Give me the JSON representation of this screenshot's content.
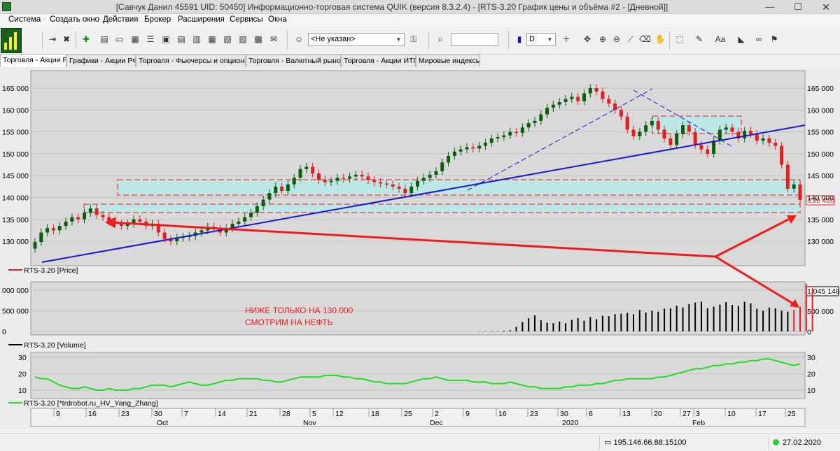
{
  "window": {
    "title": "[Савчук Данил 45591 UID: 50450] Информационно-торговая система QUIK (версия 8.3.2.4) - [RTS-3.20 График цены и объёма #2 - [Дневной]]",
    "min_glyph": "—",
    "max_glyph": "☐",
    "close_glyph": "✕"
  },
  "menu": [
    "Система",
    "Создать окно",
    "Действия",
    "Брокер",
    "Расширения",
    "Сервисы",
    "Окна"
  ],
  "toolbar": {
    "account_value": "<Не указан>",
    "interval_value": "D",
    "search_value": ""
  },
  "tabs": [
    "Торговля - Акции РФ",
    "Графики - Акции РФ",
    "Торговля - Фьючерсы и опционы",
    "Торговля - Валютный рынок",
    "Торговля - Акции ИТП",
    "Мировые индексы"
  ],
  "chart": {
    "price_legend": "RTS-3.20 [Price]",
    "volume_legend": "RTS-3.20 [Volume]",
    "hv_legend": "RTS-3.20 [*trdrobot.ru_HV_Yang_Zhang]",
    "last_price_label": "139 450",
    "last_volume_label": "1 045 148",
    "annotation_line1": "НИЖЕ ТОЛЬКО НА 130.000",
    "annotation_line2": "СМОТРИМ НА НЕФТЬ",
    "price_ticks": [
      "165 000",
      "160 000",
      "155 000",
      "150 000",
      "145 000",
      "140 000",
      "135 000",
      "130 000"
    ],
    "price_ticks_right": [
      "165 000",
      "160 000",
      "155 000",
      "150 000",
      "145 000",
      "140 000",
      "135 000",
      "130 000"
    ],
    "volume_ticks": [
      "000 000",
      "500 000",
      "0"
    ],
    "volume_ticks_right": [
      "500 000",
      "0"
    ],
    "hv_ticks": [
      "30",
      "20",
      "10"
    ],
    "day_ticks": [
      "9",
      "16",
      "23",
      "30",
      "7",
      "14",
      "21",
      "28",
      "5",
      "12",
      "18",
      "25",
      "2",
      "9",
      "16",
      "23",
      "30",
      "6",
      "13",
      "20",
      "27",
      "3",
      "10",
      "17",
      "25"
    ],
    "month_ticks": [
      "Oct",
      "Nov",
      "Dec",
      "2020",
      "Feb"
    ],
    "colors": {
      "up": "#0b5e0b",
      "down": "#e02020",
      "trend": "#1a1acd",
      "zone": "#bde6e6",
      "hv": "#22dd22",
      "arrow": "#ee1c1c"
    }
  },
  "chart_data": {
    "type": "candlestick",
    "series_name": "RTS-3.20",
    "y_range": [
      126000,
      167000
    ],
    "close_prices": [
      129800,
      132000,
      133000,
      132500,
      133500,
      134500,
      135500,
      135000,
      136500,
      137500,
      136000,
      135500,
      134500,
      134000,
      133500,
      134000,
      135000,
      134500,
      133500,
      134000,
      132000,
      130500,
      130000,
      130800,
      131000,
      131200,
      132000,
      132500,
      133300,
      132800,
      132000,
      133000,
      134000,
      134500,
      135500,
      136500,
      138000,
      139500,
      141000,
      142500,
      141500,
      143000,
      144500,
      146500,
      147000,
      145500,
      144000,
      143500,
      143800,
      144500,
      144300,
      144800,
      145200,
      144800,
      144000,
      143500,
      143200,
      143000,
      142500,
      142000,
      141000,
      142500,
      143800,
      144500,
      145200,
      146000,
      148000,
      149500,
      150500,
      151000,
      151500,
      151200,
      151800,
      152500,
      153500,
      153800,
      154200,
      155000,
      154800,
      156000,
      157000,
      157500,
      159000,
      160500,
      161200,
      161800,
      162500,
      163000,
      162000,
      163800,
      165000,
      164200,
      162500,
      161500,
      160000,
      158500,
      155500,
      154000,
      155000,
      156500,
      157500,
      155500,
      153500,
      152000,
      154500,
      156500,
      155000,
      152000,
      151000,
      150000,
      153000,
      155500,
      156000,
      155000,
      153500,
      155200,
      154500,
      153000,
      153500,
      152500,
      151800,
      147500,
      142000,
      143000,
      139450
    ],
    "volume_values": [
      0,
      0,
      0,
      0,
      0,
      0,
      0,
      0,
      0,
      0,
      0,
      0,
      0,
      0,
      0,
      0,
      0,
      0,
      0,
      0,
      0,
      0,
      0,
      0,
      0,
      0,
      0,
      0,
      0,
      0,
      0,
      0,
      0,
      0,
      0,
      0,
      0,
      0,
      0,
      0,
      0,
      0,
      0,
      0,
      0,
      0,
      0,
      0,
      0,
      0,
      0,
      0,
      0,
      0,
      0,
      0,
      0,
      0,
      0,
      0,
      0,
      0,
      0,
      0,
      0,
      0,
      0,
      0,
      0,
      0,
      0,
      0,
      5000,
      8000,
      10000,
      12000,
      18000,
      30000,
      110000,
      230000,
      320000,
      390000,
      270000,
      210000,
      200000,
      240000,
      200000,
      280000,
      320000,
      260000,
      350000,
      300000,
      380000,
      370000,
      420000,
      430000,
      450000,
      420000,
      520000,
      460000,
      500000,
      480000,
      550000,
      560000,
      620000,
      580000,
      660000,
      700000,
      720000,
      560000,
      600000,
      650000,
      710000,
      640000,
      620000,
      720000,
      680000,
      550000,
      500000,
      580000,
      560000,
      500000,
      480000,
      520000,
      600000,
      1150000,
      1045148
    ],
    "hv_values": [
      18,
      17,
      17,
      15,
      13,
      12,
      11,
      11,
      12,
      11,
      10,
      10,
      11,
      10,
      10,
      10,
      11,
      11,
      12,
      13,
      13,
      13,
      12,
      13,
      14,
      15,
      14,
      13,
      13,
      14,
      15,
      16,
      16,
      17,
      17,
      17,
      17,
      16,
      16,
      15,
      15,
      16,
      17,
      18,
      18,
      18,
      18,
      19,
      19,
      19,
      18,
      18,
      17,
      17,
      16,
      15,
      15,
      14,
      14,
      14,
      14,
      15,
      16,
      17,
      17,
      18,
      17,
      16,
      16,
      16,
      16,
      15,
      15,
      15,
      14,
      14,
      14,
      15,
      14,
      13,
      12,
      12,
      11,
      11,
      11,
      11,
      12,
      12,
      13,
      13,
      13,
      14,
      14,
      15,
      16,
      16,
      17,
      17,
      17,
      17,
      17,
      18,
      18,
      19,
      20,
      21,
      22,
      23,
      23,
      24,
      25,
      25,
      26,
      26,
      27,
      27,
      28,
      28,
      29,
      29,
      28,
      27,
      26,
      25,
      26
    ]
  }
}
